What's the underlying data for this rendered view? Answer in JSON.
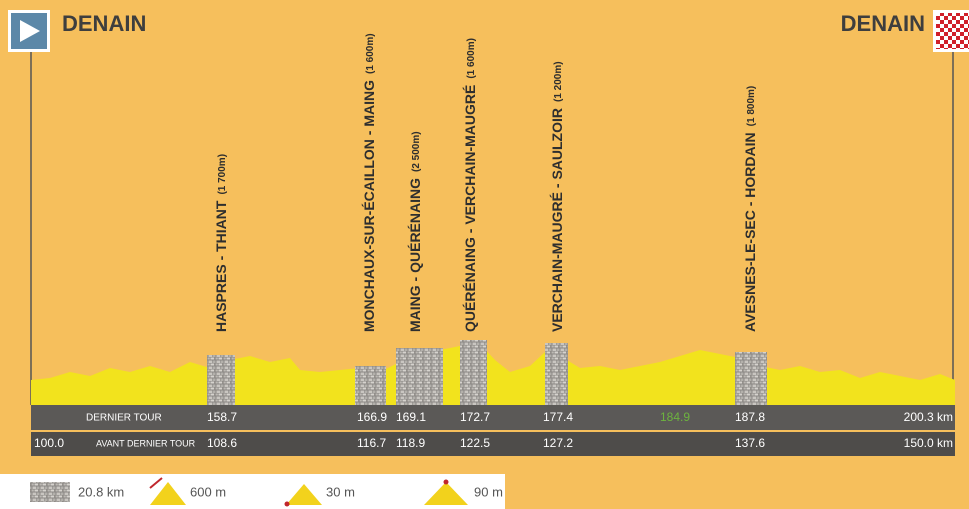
{
  "start": {
    "label": "DENAIN"
  },
  "finish": {
    "label": "DENAIN"
  },
  "sectors": [
    {
      "name": "HASPRES - THIANT",
      "length": "(1 700m)"
    },
    {
      "name": "MONCHAUX-SUR-ÉCAILLON - MAING",
      "length": "(1 600m)"
    },
    {
      "name": "MAING - QUÉRÉNAING",
      "length": "(2 500m)"
    },
    {
      "name": "QUÉRÉNAING - VERCHAIN-MAUGRÉ",
      "length": "(1 600m)"
    },
    {
      "name": "VERCHAIN-MAUGRÉ - SAULZOIR",
      "length": "(1 200m)"
    },
    {
      "name": "AVESNES-LE-SEC - HORDAIN",
      "length": "(1 800m)"
    }
  ],
  "table": {
    "rows": [
      {
        "label": "DERNIER TOUR",
        "cells": [
          "158.7",
          "166.9",
          "169.1",
          "172.7",
          "177.4",
          "184.9",
          "187.8",
          "200.3 km"
        ]
      },
      {
        "start": "100.0",
        "label": "AVANT DERNIER TOUR",
        "cells": [
          "108.6",
          "116.7",
          "118.9",
          "122.5",
          "127.2",
          "137.6",
          "150.0 km"
        ]
      }
    ]
  },
  "legend": {
    "cobbles": "20.8 km",
    "climb": "600 m",
    "descent": "30 m",
    "summit": "90 m"
  }
}
